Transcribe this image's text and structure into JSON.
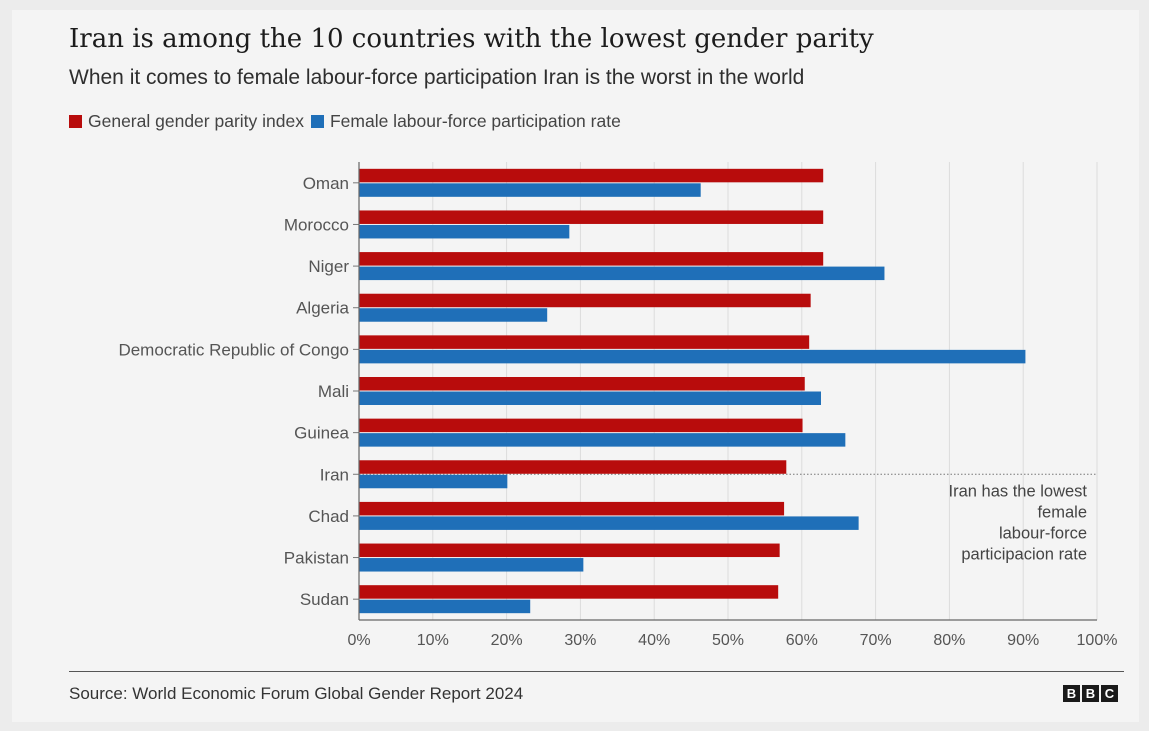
{
  "header": {
    "title": "Iran is among the 10 countries with the lowest gender parity",
    "subtitle": "When it comes to female labour-force participation Iran is the worst in the world"
  },
  "legend": [
    {
      "label": "General gender parity index",
      "color": "#b80c0c"
    },
    {
      "label": "Female labour-force participation rate",
      "color": "#1f6fb8"
    }
  ],
  "chart_data": {
    "type": "bar",
    "orientation": "horizontal",
    "categories": [
      "Oman",
      "Morocco",
      "Niger",
      "Algeria",
      "Democratic Republic of Congo",
      "Mali",
      "Guinea",
      "Iran",
      "Chad",
      "Pakistan",
      "Sudan"
    ],
    "series": [
      {
        "name": "General gender parity index",
        "color": "#b80c0c",
        "values": [
          62.9,
          62.9,
          62.9,
          61.2,
          61.0,
          60.4,
          60.1,
          57.9,
          57.6,
          57.0,
          56.8
        ]
      },
      {
        "name": "Female labour-force participation rate",
        "color": "#1f6fb8",
        "values": [
          46.3,
          28.5,
          71.2,
          25.5,
          90.3,
          62.6,
          65.9,
          20.1,
          67.7,
          30.4,
          23.2
        ]
      }
    ],
    "xlim": [
      0,
      100
    ],
    "x_ticks": [
      "0%",
      "10%",
      "20%",
      "30%",
      "40%",
      "50%",
      "60%",
      "70%",
      "80%",
      "90%",
      "100%"
    ],
    "grid": true,
    "annotation": {
      "category": "Iran",
      "lines": [
        "Iran has the lowest",
        "female",
        "labour-force",
        "participacion rate"
      ]
    }
  },
  "footer": {
    "source": "Source: World Economic Forum Global Gender Report 2024",
    "logo_letters": [
      "B",
      "B",
      "C"
    ]
  }
}
